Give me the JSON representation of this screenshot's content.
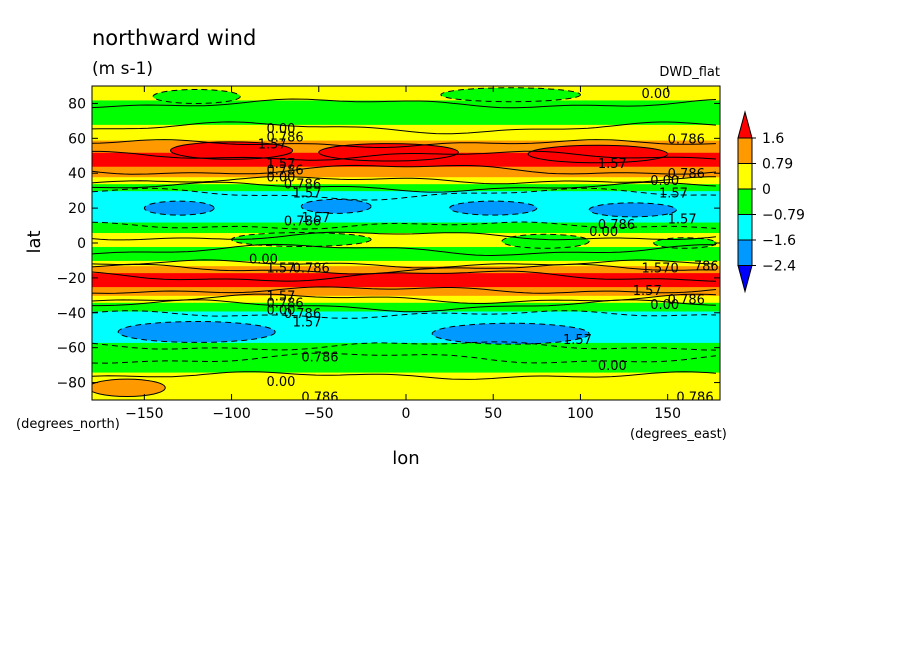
{
  "header": {
    "title": "northward wind",
    "units": "(m s-1)",
    "dataset": "DWD_flat"
  },
  "chart_data": {
    "type": "heatmap",
    "title": "northward wind",
    "subtitle": "(m s-1)",
    "xlabel": "lon",
    "ylabel": "lat",
    "x_units": "(degrees_east)",
    "y_units": "(degrees_north)",
    "xlim": [
      -180,
      180
    ],
    "ylim": [
      -90,
      90
    ],
    "x_ticks": [
      -150,
      -100,
      -50,
      0,
      50,
      100,
      150
    ],
    "y_ticks": [
      -80,
      -60,
      -40,
      -20,
      0,
      20,
      40,
      60,
      80
    ],
    "colorbar": {
      "labels": [
        "1.6",
        "0.79",
        "0",
        "-0.79",
        "-1.6",
        "-2.4"
      ],
      "colors": [
        "#ff0000",
        "#ff9900",
        "#ffff00",
        "#00ff00",
        "#00ffff",
        "#0099ff",
        "#0000ff"
      ]
    },
    "lat_bands": [
      {
        "lat": [
          80,
          90
        ],
        "value": 0.4
      },
      {
        "lat": [
          66,
          80
        ],
        "value": -0.4
      },
      {
        "lat": [
          57,
          66
        ],
        "value": 0.4
      },
      {
        "lat": [
          50,
          57
        ],
        "value": 1.1
      },
      {
        "lat": [
          42,
          50
        ],
        "value": 1.9
      },
      {
        "lat": [
          36,
          42
        ],
        "value": 0.9
      },
      {
        "lat": [
          32,
          36
        ],
        "value": 0.4
      },
      {
        "lat": [
          28,
          32
        ],
        "value": -0.4
      },
      {
        "lat": [
          10,
          28
        ],
        "value": -1.2
      },
      {
        "lat": [
          4,
          10
        ],
        "value": -0.4
      },
      {
        "lat": [
          -4,
          4
        ],
        "value": 0.4
      },
      {
        "lat": [
          -12,
          -4
        ],
        "value": -0.4
      },
      {
        "lat": [
          -15,
          -12
        ],
        "value": 0.4
      },
      {
        "lat": [
          -19,
          -15
        ],
        "value": 1.1
      },
      {
        "lat": [
          -27,
          -19
        ],
        "value": 1.9
      },
      {
        "lat": [
          -32,
          -27
        ],
        "value": 0.9
      },
      {
        "lat": [
          -36,
          -32
        ],
        "value": 0.4
      },
      {
        "lat": [
          -41,
          -36
        ],
        "value": -0.4
      },
      {
        "lat": [
          -59,
          -41
        ],
        "value": -1.2
      },
      {
        "lat": [
          -66,
          -59
        ],
        "value": -0.4
      },
      {
        "lat": [
          -76,
          -66
        ],
        "value": -0.4
      },
      {
        "lat": [
          -90,
          -76
        ],
        "value": 0.4
      }
    ],
    "features": [
      {
        "lon": -120,
        "lat": 84,
        "rx": 25,
        "ry": 4,
        "value": -0.4
      },
      {
        "lon": 60,
        "lat": 85,
        "rx": 40,
        "ry": 4,
        "value": -0.4
      },
      {
        "lon": -100,
        "lat": 53,
        "rx": 35,
        "ry": 5,
        "value": 2.2
      },
      {
        "lon": -10,
        "lat": 52,
        "rx": 40,
        "ry": 5,
        "value": 2.2
      },
      {
        "lon": 110,
        "lat": 51,
        "rx": 40,
        "ry": 5,
        "value": 2.2
      },
      {
        "lon": -130,
        "lat": 20,
        "rx": 20,
        "ry": 4,
        "value": -2.0
      },
      {
        "lon": -40,
        "lat": 21,
        "rx": 20,
        "ry": 4,
        "value": -2.0
      },
      {
        "lon": 50,
        "lat": 20,
        "rx": 25,
        "ry": 4,
        "value": -2.0
      },
      {
        "lon": 130,
        "lat": 19,
        "rx": 25,
        "ry": 4,
        "value": -2.0
      },
      {
        "lon": -60,
        "lat": 2,
        "rx": 40,
        "ry": 4,
        "value": -0.4
      },
      {
        "lon": 80,
        "lat": 1,
        "rx": 25,
        "ry": 4,
        "value": -0.4
      },
      {
        "lon": 160,
        "lat": 0,
        "rx": 18,
        "ry": 3,
        "value": -0.4
      },
      {
        "lon": -120,
        "lat": -51,
        "rx": 45,
        "ry": 6,
        "value": -2.0
      },
      {
        "lon": 60,
        "lat": -52,
        "rx": 45,
        "ry": 6,
        "value": -2.0
      },
      {
        "lon": -160,
        "lat": -83,
        "rx": 22,
        "ry": 5,
        "value": 1.1
      }
    ],
    "contour_labels": [
      {
        "text": "0.00",
        "lon": 135,
        "lat": 86
      },
      {
        "text": "0.786",
        "lon": 150,
        "lat": 60
      },
      {
        "text": "0.00",
        "lon": -80,
        "lat": 66
      },
      {
        "text": "0.786",
        "lon": -80,
        "lat": 61
      },
      {
        "text": "1.57",
        "lon": -85,
        "lat": 57
      },
      {
        "text": "1.57",
        "lon": 110,
        "lat": 46
      },
      {
        "text": "1.57",
        "lon": -80,
        "lat": 46
      },
      {
        "text": "0.786",
        "lon": -80,
        "lat": 42
      },
      {
        "text": "0.00",
        "lon": -80,
        "lat": 38
      },
      {
        "text": "0.786",
        "lon": -70,
        "lat": 34
      },
      {
        "text": "0.786",
        "lon": 150,
        "lat": 40
      },
      {
        "text": "0.00",
        "lon": 140,
        "lat": 36
      },
      {
        "text": "1.57",
        "lon": -65,
        "lat": 29
      },
      {
        "text": "1.57",
        "lon": 145,
        "lat": 29
      },
      {
        "text": "1.57",
        "lon": 150,
        "lat": 14
      },
      {
        "text": "0.786",
        "lon": -70,
        "lat": 13
      },
      {
        "text": "0.786",
        "lon": 110,
        "lat": 11
      },
      {
        "text": "1.57",
        "lon": -60,
        "lat": 15
      },
      {
        "text": "0.00",
        "lon": 105,
        "lat": 7
      },
      {
        "text": "0.00",
        "lon": -90,
        "lat": -9
      },
      {
        "text": "1.57",
        "lon": -80,
        "lat": -14
      },
      {
        "text": "0.786",
        "lon": -65,
        "lat": -14
      },
      {
        "text": "1.570",
        "lon": 135,
        "lat": -14
      },
      {
        "text": "786",
        "lon": 165,
        "lat": -13
      },
      {
        "text": "1.57",
        "lon": 130,
        "lat": -27
      },
      {
        "text": "0.786",
        "lon": 150,
        "lat": -32
      },
      {
        "text": "0.00",
        "lon": 140,
        "lat": -35
      },
      {
        "text": "1.57",
        "lon": -80,
        "lat": -30
      },
      {
        "text": "0.786",
        "lon": -80,
        "lat": -34
      },
      {
        "text": "0.00",
        "lon": -80,
        "lat": -38
      },
      {
        "text": "0.786",
        "lon": -70,
        "lat": -40
      },
      {
        "text": "1.57",
        "lon": -65,
        "lat": -45
      },
      {
        "text": "1.57",
        "lon": 90,
        "lat": -55
      },
      {
        "text": "0.786",
        "lon": -60,
        "lat": -65
      },
      {
        "text": "0.00",
        "lon": 110,
        "lat": -70
      },
      {
        "text": "0.00",
        "lon": -80,
        "lat": -79
      },
      {
        "text": "0.786",
        "lon": -60,
        "lat": -88
      },
      {
        "text": "0.786",
        "lon": 155,
        "lat": -88
      }
    ]
  }
}
